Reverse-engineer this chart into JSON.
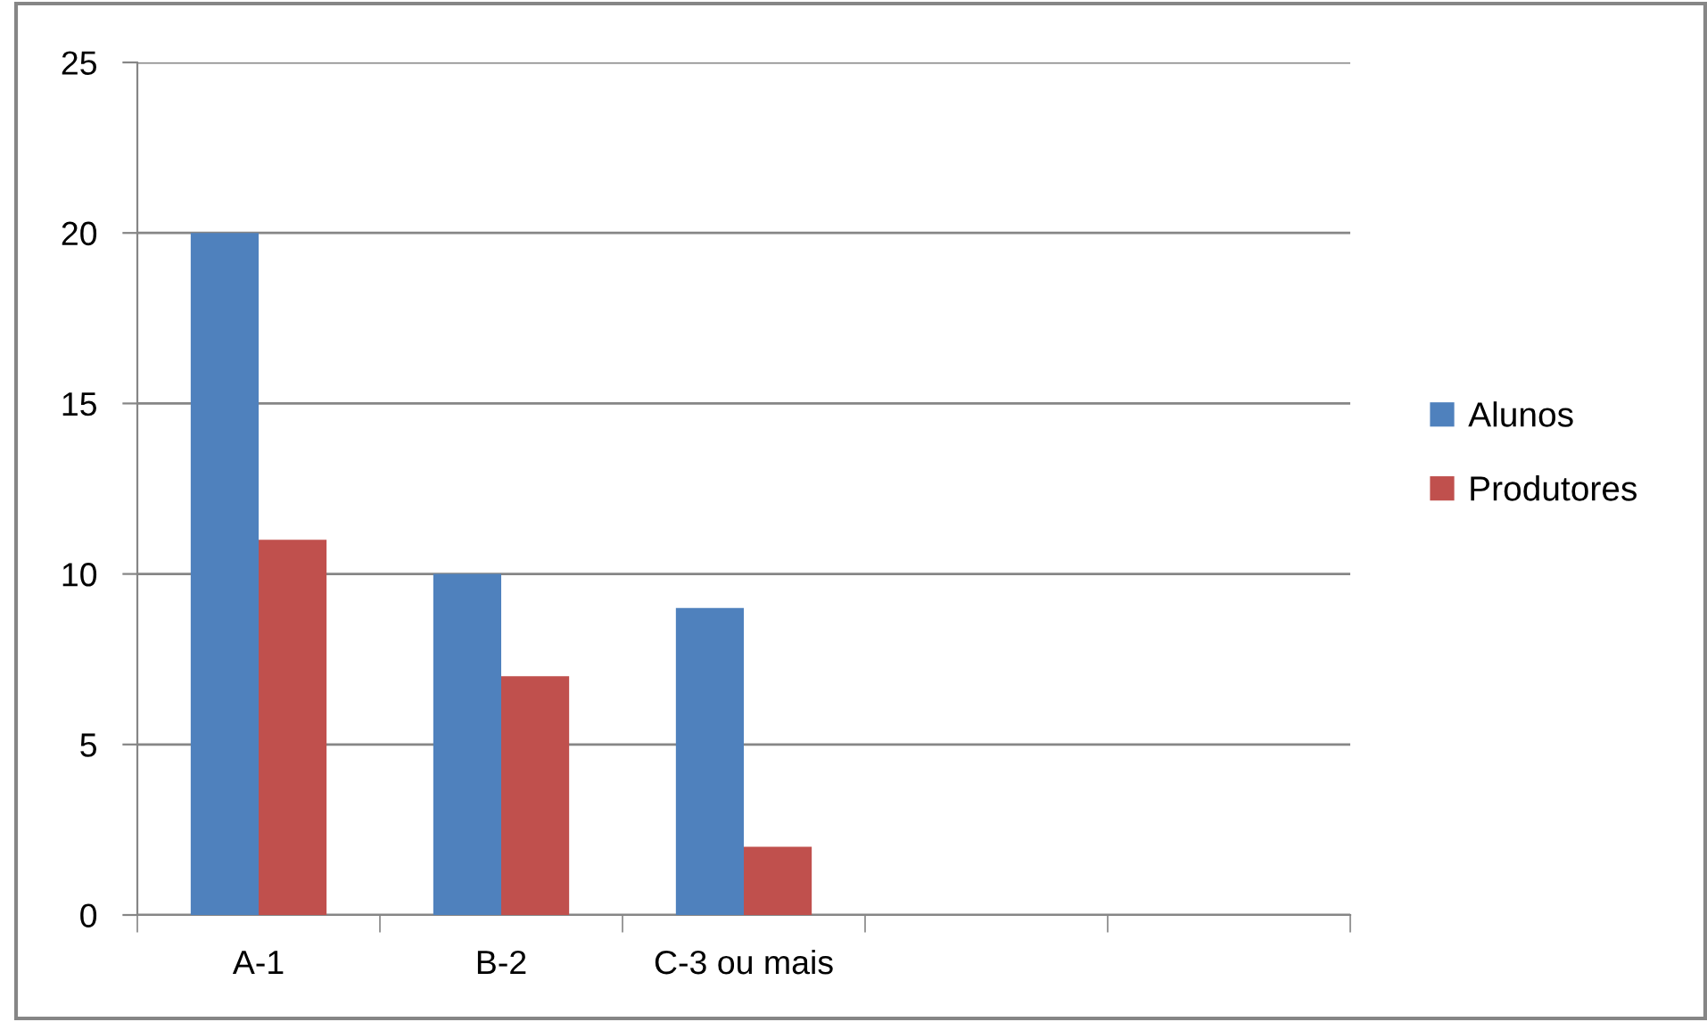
{
  "chart_data": {
    "type": "bar",
    "categories": [
      "A-1",
      "B-2",
      "C-3 ou mais",
      null,
      null
    ],
    "series": [
      {
        "name": "Alunos",
        "color": "#4f81bd",
        "values": [
          20,
          10,
          9,
          null,
          null
        ]
      },
      {
        "name": "Produtores",
        "color": "#c0504d",
        "values": [
          11,
          7,
          2,
          null,
          null
        ]
      }
    ],
    "ylim": [
      0,
      25
    ],
    "yticks": [
      0,
      5,
      10,
      15,
      20,
      25
    ],
    "grid": "y",
    "legend": "right"
  }
}
